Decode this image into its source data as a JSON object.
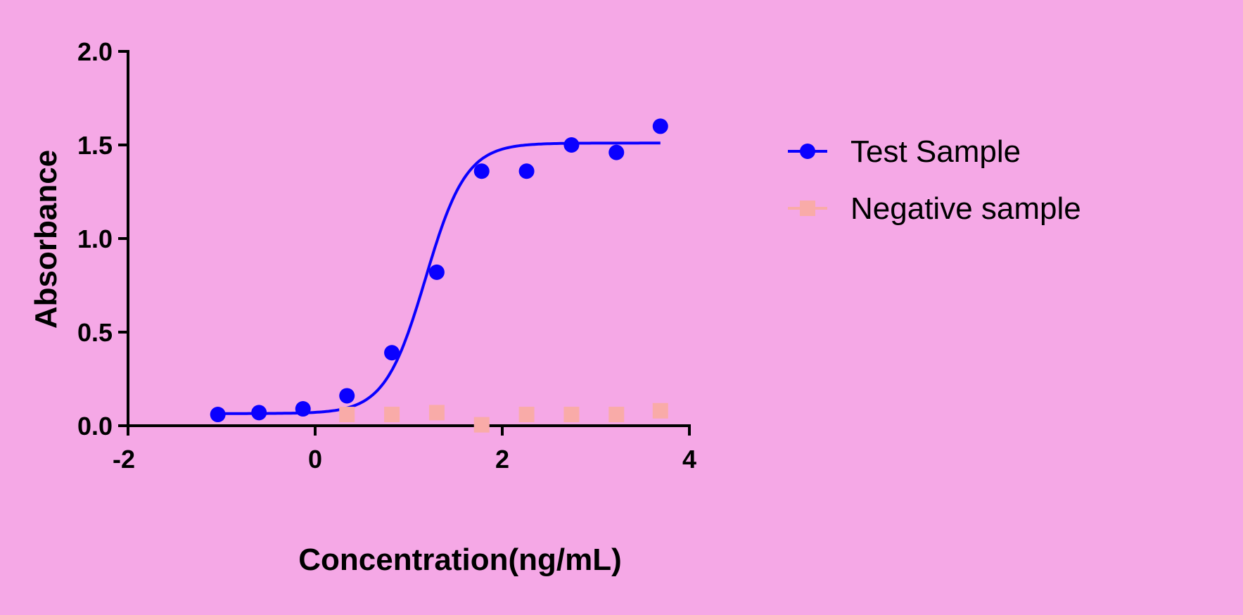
{
  "chart_data": {
    "type": "scatter",
    "title": "",
    "xlabel": "Concentration(ng/mL)",
    "ylabel": "Absorbance",
    "xlim": [
      -2,
      4
    ],
    "ylim": [
      0.0,
      2.0
    ],
    "x_ticks": [
      "-2",
      "0",
      "2",
      "4"
    ],
    "y_ticks": [
      "0.0",
      "0.5",
      "1.0",
      "1.5",
      "2.0"
    ],
    "grid": false,
    "legend_position": "right",
    "series": [
      {
        "name": "Test Sample",
        "color": "#0a00ff",
        "marker": "circle",
        "fit": "sigmoidal 4PL",
        "x": [
          -1.04,
          -0.6,
          -0.13,
          0.34,
          0.82,
          1.3,
          1.78,
          2.26,
          2.74,
          3.22,
          3.69
        ],
        "y": [
          0.06,
          0.07,
          0.09,
          0.16,
          0.39,
          0.82,
          1.36,
          1.36,
          1.5,
          1.46,
          1.6
        ]
      },
      {
        "name": "Negative sample",
        "color": "#f9aba8",
        "marker": "square",
        "x": [
          0.34,
          0.82,
          1.3,
          1.78,
          2.26,
          2.74,
          3.22,
          3.69
        ],
        "y": [
          0.06,
          0.06,
          0.07,
          0.005,
          0.06,
          0.06,
          0.06,
          0.08
        ]
      }
    ]
  }
}
